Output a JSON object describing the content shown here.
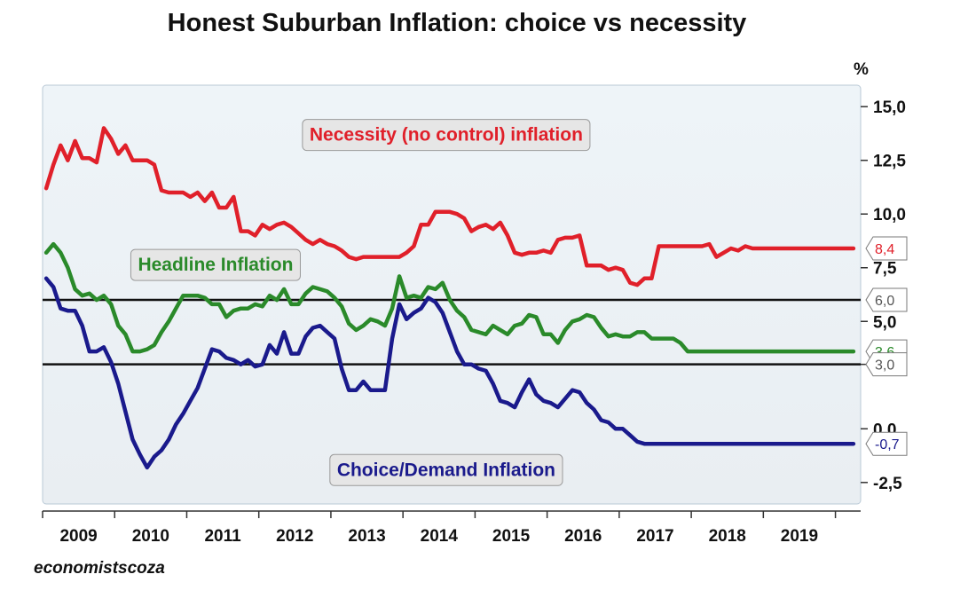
{
  "chart_data": {
    "type": "line",
    "title": "Honest Suburban Inflation: choice vs necessity",
    "ylabel": "%",
    "ylim": [
      -3.5,
      16
    ],
    "xlim": [
      2008.5,
      2019.85
    ],
    "yticks": [
      15.0,
      12.5,
      10.0,
      7.5,
      5.0,
      3.0,
      0.0,
      -2.5
    ],
    "ytick_labels": [
      "15,0",
      "12,5",
      "10,0",
      "7,5",
      "5,0",
      "3,0",
      "0,0",
      "-2,5"
    ],
    "x_tick_labels": [
      "2009",
      "2010",
      "2011",
      "2012",
      "2013",
      "2014",
      "2015",
      "2016",
      "2017",
      "2018",
      "2019"
    ],
    "x_tick_positions": [
      2009,
      2010,
      2011,
      2012,
      2013,
      2014,
      2015,
      2016,
      2017,
      2018,
      2019
    ],
    "x_boundaries": [
      2008.5,
      2009.5,
      2010.5,
      2011.5,
      2012.5,
      2013.5,
      2014.5,
      2015.5,
      2016.5,
      2017.5,
      2018.5,
      2019.5
    ],
    "grid": false,
    "hlines": [
      6.0,
      3.0
    ],
    "series": [
      {
        "name": "Necessity (no control) inflation",
        "color": "#e0202a",
        "end_label": "8,4",
        "x": [
          2008.55,
          2008.65,
          2008.75,
          2008.85,
          2008.95,
          2009.05,
          2009.15,
          2009.25,
          2009.35,
          2009.45,
          2009.55,
          2009.65,
          2009.75,
          2009.85,
          2009.95,
          2010.05,
          2010.15,
          2010.25,
          2010.35,
          2010.45,
          2010.55,
          2010.65,
          2010.75,
          2010.85,
          2010.95,
          2011.05,
          2011.15,
          2011.25,
          2011.35,
          2011.45,
          2011.55,
          2011.65,
          2011.75,
          2011.85,
          2011.95,
          2012.05,
          2012.15,
          2012.25,
          2012.35,
          2012.45,
          2012.55,
          2012.65,
          2012.75,
          2012.85,
          2012.95,
          2013.05,
          2013.15,
          2013.25,
          2013.35,
          2013.45,
          2013.55,
          2013.65,
          2013.75,
          2013.85,
          2013.95,
          2014.05,
          2014.15,
          2014.25,
          2014.35,
          2014.45,
          2014.55,
          2014.65,
          2014.75,
          2014.85,
          2014.95,
          2015.05,
          2015.15,
          2015.25,
          2015.35,
          2015.45,
          2015.55,
          2015.65,
          2015.75,
          2015.85,
          2015.95,
          2016.05,
          2016.15,
          2016.25,
          2016.35,
          2016.45,
          2016.55,
          2016.65,
          2016.75,
          2016.85,
          2016.95,
          2017.05,
          2017.15,
          2017.25,
          2017.35,
          2017.45,
          2017.55,
          2017.65,
          2017.75,
          2017.85,
          2017.95,
          2018.05,
          2018.15,
          2018.25,
          2018.35,
          2018.45,
          2018.55,
          2018.65,
          2018.75,
          2018.85,
          2018.95,
          2019.05,
          2019.15,
          2019.25,
          2019.35,
          2019.45,
          2019.55,
          2019.65,
          2019.75
        ],
        "y": [
          11.2,
          12.3,
          13.2,
          12.5,
          13.4,
          12.6,
          12.6,
          12.4,
          14.0,
          13.5,
          12.8,
          13.2,
          12.5,
          12.5,
          12.5,
          12.3,
          11.1,
          11.0,
          11.0,
          11.0,
          10.8,
          11.0,
          10.6,
          11.0,
          10.3,
          10.3,
          10.8,
          9.2,
          9.2,
          9.0,
          9.5,
          9.3,
          9.5,
          9.6,
          9.4,
          9.1,
          8.8,
          8.6,
          8.8,
          8.6,
          8.5,
          8.3,
          8.0,
          7.9,
          8.0,
          8.0,
          8.0,
          8.0,
          8.0,
          8.0,
          8.2,
          8.5,
          9.5,
          9.5,
          10.1,
          10.1,
          10.1,
          10.0,
          9.8,
          9.2,
          9.4,
          9.5,
          9.3,
          9.6,
          9.0,
          8.2,
          8.1,
          8.2,
          8.2,
          8.3,
          8.2,
          8.8,
          8.9,
          8.9,
          9.0,
          7.6,
          7.6,
          7.6,
          7.4,
          7.5,
          7.4,
          6.8,
          6.7,
          7.0,
          7.0,
          8.5,
          8.5,
          8.5,
          8.5,
          8.5,
          8.5,
          8.5,
          8.6,
          8.0,
          8.2,
          8.4,
          8.3,
          8.5,
          8.4,
          8.4,
          8.4,
          8.4,
          8.4,
          8.4,
          8.4,
          8.4,
          8.4,
          8.4,
          8.4,
          8.4,
          8.4,
          8.4,
          8.4
        ]
      },
      {
        "name": "Headline Inflation",
        "color": "#2a8a2a",
        "end_label": "3,6",
        "x": [
          2008.55,
          2008.65,
          2008.75,
          2008.85,
          2008.95,
          2009.05,
          2009.15,
          2009.25,
          2009.35,
          2009.45,
          2009.55,
          2009.65,
          2009.75,
          2009.85,
          2009.95,
          2010.05,
          2010.15,
          2010.25,
          2010.35,
          2010.45,
          2010.55,
          2010.65,
          2010.75,
          2010.85,
          2010.95,
          2011.05,
          2011.15,
          2011.25,
          2011.35,
          2011.45,
          2011.55,
          2011.65,
          2011.75,
          2011.85,
          2011.95,
          2012.05,
          2012.15,
          2012.25,
          2012.35,
          2012.45,
          2012.55,
          2012.65,
          2012.75,
          2012.85,
          2012.95,
          2013.05,
          2013.15,
          2013.25,
          2013.35,
          2013.45,
          2013.55,
          2013.65,
          2013.75,
          2013.85,
          2013.95,
          2014.05,
          2014.15,
          2014.25,
          2014.35,
          2014.45,
          2014.55,
          2014.65,
          2014.75,
          2014.85,
          2014.95,
          2015.05,
          2015.15,
          2015.25,
          2015.35,
          2015.45,
          2015.55,
          2015.65,
          2015.75,
          2015.85,
          2015.95,
          2016.05,
          2016.15,
          2016.25,
          2016.35,
          2016.45,
          2016.55,
          2016.65,
          2016.75,
          2016.85,
          2016.95,
          2017.05,
          2017.15,
          2017.25,
          2017.35,
          2017.45,
          2017.55,
          2017.65,
          2017.75,
          2017.85,
          2017.95,
          2018.05,
          2018.15,
          2018.25,
          2018.35,
          2018.45,
          2018.55,
          2018.65,
          2018.75,
          2018.85,
          2018.95,
          2019.05,
          2019.15,
          2019.25,
          2019.35,
          2019.45,
          2019.55,
          2019.65,
          2019.75
        ],
        "y": [
          8.2,
          8.6,
          8.2,
          7.5,
          6.5,
          6.2,
          6.3,
          6.0,
          6.2,
          5.8,
          4.8,
          4.4,
          3.6,
          3.6,
          3.7,
          3.9,
          4.5,
          5.0,
          5.6,
          6.2,
          6.2,
          6.2,
          6.1,
          5.8,
          5.8,
          5.2,
          5.5,
          5.6,
          5.6,
          5.8,
          5.7,
          6.2,
          6.0,
          6.5,
          5.8,
          5.8,
          6.3,
          6.6,
          6.5,
          6.4,
          6.1,
          5.7,
          4.9,
          4.6,
          4.8,
          5.1,
          5.0,
          4.8,
          5.6,
          7.1,
          6.1,
          6.2,
          6.1,
          6.6,
          6.5,
          6.8,
          6.0,
          5.5,
          5.2,
          4.6,
          4.5,
          4.4,
          4.8,
          4.6,
          4.4,
          4.8,
          4.9,
          5.3,
          5.2,
          4.4,
          4.4,
          4.0,
          4.6,
          5.0,
          5.1,
          5.3,
          5.2,
          4.7,
          4.3,
          4.4,
          4.3,
          4.3,
          4.5,
          4.5,
          4.2,
          4.2,
          4.2,
          4.2,
          4.0,
          3.6,
          3.6,
          3.6,
          3.6,
          3.6,
          3.6,
          3.6,
          3.6,
          3.6,
          3.6,
          3.6,
          3.6,
          3.6,
          3.6,
          3.6,
          3.6,
          3.6,
          3.6,
          3.6,
          3.6,
          3.6,
          3.6,
          3.6,
          3.6
        ]
      },
      {
        "name": "Choice/Demand Inflation",
        "color": "#1a1a8c",
        "end_label": "-0,7",
        "x": [
          2008.55,
          2008.65,
          2008.75,
          2008.85,
          2008.95,
          2009.05,
          2009.15,
          2009.25,
          2009.35,
          2009.45,
          2009.55,
          2009.65,
          2009.75,
          2009.85,
          2009.95,
          2010.05,
          2010.15,
          2010.25,
          2010.35,
          2010.45,
          2010.55,
          2010.65,
          2010.75,
          2010.85,
          2010.95,
          2011.05,
          2011.15,
          2011.25,
          2011.35,
          2011.45,
          2011.55,
          2011.65,
          2011.75,
          2011.85,
          2011.95,
          2012.05,
          2012.15,
          2012.25,
          2012.35,
          2012.45,
          2012.55,
          2012.65,
          2012.75,
          2012.85,
          2012.95,
          2013.05,
          2013.15,
          2013.25,
          2013.35,
          2013.45,
          2013.55,
          2013.65,
          2013.75,
          2013.85,
          2013.95,
          2014.05,
          2014.15,
          2014.25,
          2014.35,
          2014.45,
          2014.55,
          2014.65,
          2014.75,
          2014.85,
          2014.95,
          2015.05,
          2015.15,
          2015.25,
          2015.35,
          2015.45,
          2015.55,
          2015.65,
          2015.75,
          2015.85,
          2015.95,
          2016.05,
          2016.15,
          2016.25,
          2016.35,
          2016.45,
          2016.55,
          2016.65,
          2016.75,
          2016.85,
          2016.95,
          2017.05,
          2017.15,
          2017.25,
          2017.35,
          2017.45,
          2017.55,
          2017.65,
          2017.75,
          2017.85,
          2017.95,
          2018.05,
          2018.15,
          2018.25,
          2018.35,
          2018.45,
          2018.55,
          2018.65,
          2018.75,
          2018.85,
          2018.95,
          2019.05,
          2019.15,
          2019.25,
          2019.35,
          2019.45,
          2019.55,
          2019.65,
          2019.75
        ],
        "y": [
          7.0,
          6.6,
          5.6,
          5.5,
          5.5,
          4.8,
          3.6,
          3.6,
          3.8,
          3.1,
          2.1,
          0.8,
          -0.5,
          -1.2,
          -1.8,
          -1.3,
          -1.0,
          -0.5,
          0.2,
          0.7,
          1.3,
          1.9,
          2.8,
          3.7,
          3.6,
          3.3,
          3.2,
          3.0,
          3.2,
          2.9,
          3.0,
          3.9,
          3.5,
          4.5,
          3.5,
          3.5,
          4.3,
          4.7,
          4.8,
          4.5,
          4.2,
          2.8,
          1.8,
          1.8,
          2.2,
          1.8,
          1.8,
          1.8,
          4.2,
          5.8,
          5.1,
          5.4,
          5.6,
          6.1,
          5.9,
          5.4,
          4.5,
          3.6,
          3.0,
          3.0,
          2.8,
          2.7,
          2.1,
          1.3,
          1.2,
          1.0,
          1.7,
          2.3,
          1.6,
          1.3,
          1.2,
          1.0,
          1.4,
          1.8,
          1.7,
          1.2,
          0.9,
          0.4,
          0.3,
          0.0,
          0.0,
          -0.3,
          -0.6,
          -0.7,
          -0.7,
          -0.7,
          -0.7,
          -0.7,
          -0.7,
          -0.7,
          -0.7,
          -0.7,
          -0.7,
          -0.7,
          -0.7,
          -0.7,
          -0.7,
          -0.7,
          -0.7,
          -0.7,
          -0.7,
          -0.7,
          -0.7,
          -0.7,
          -0.7,
          -0.7,
          -0.7,
          -0.7,
          -0.7,
          -0.7,
          -0.7,
          -0.7,
          -0.7
        ]
      }
    ],
    "annotations": [
      {
        "text": "Necessity (no control) inflation",
        "x": 2014.1,
        "y": 13.7,
        "color": "#e0202a"
      },
      {
        "text": "Headline Inflation",
        "x": 2010.9,
        "y": 7.65,
        "color": "#2a8a2a"
      },
      {
        "text": "Choice/Demand Inflation",
        "x": 2014.1,
        "y": -1.9,
        "color": "#1a1a8c"
      }
    ],
    "right_callouts": [
      {
        "text": "8,4",
        "y": 8.4,
        "color": "#e0202a"
      },
      {
        "text": "6,0",
        "y": 6.0,
        "color": "#555555"
      },
      {
        "text": "3,6",
        "y": 3.6,
        "color": "#2a8a2a"
      },
      {
        "text": "3,0",
        "y": 3.0,
        "color": "#555555"
      },
      {
        "text": "-0,7",
        "y": -0.7,
        "color": "#1a1a8c"
      }
    ]
  },
  "source_text": "economistscoza"
}
